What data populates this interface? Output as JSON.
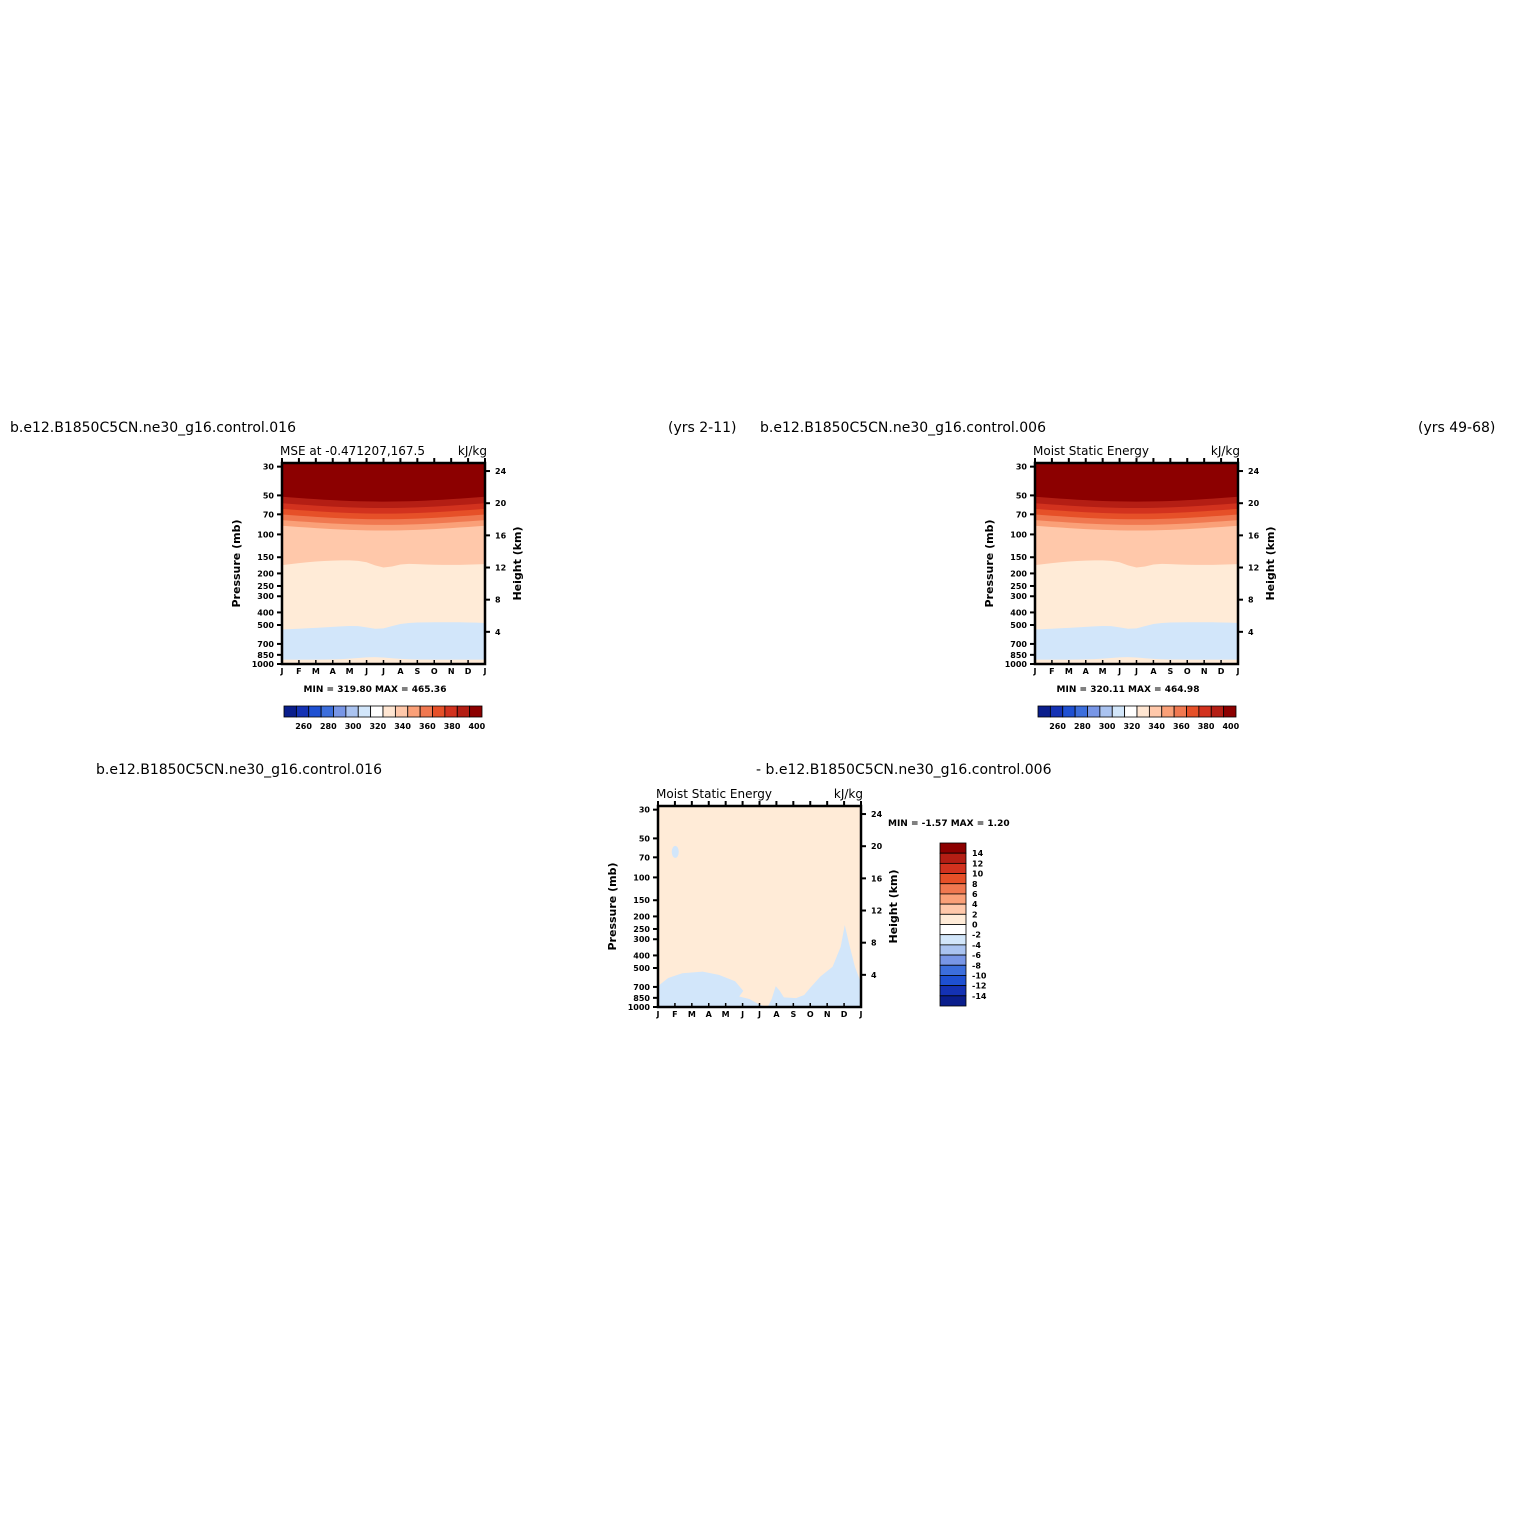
{
  "headers": {
    "left_case": "b.e12.B1850C5CN.ne30_g16.control.016",
    "left_years": "(yrs 2-11)",
    "right_case": "b.e12.B1850C5CN.ne30_g16.control.006",
    "right_years": "(yrs 49-68)",
    "diff_left": "b.e12.B1850C5CN.ne30_g16.control.016",
    "diff_right": "- b.e12.B1850C5CN.ne30_g16.control.006"
  },
  "chart_data": [
    {
      "type": "heatmap",
      "title": "MSE at -0.471207,167.5",
      "units": "kJ/kg",
      "xlabel": "",
      "ylabel": "Pressure (mb)",
      "ylabel_right": "Height (km)",
      "x_ticks": [
        "J",
        "F",
        "M",
        "A",
        "M",
        "J",
        "J",
        "A",
        "S",
        "O",
        "N",
        "D",
        "J"
      ],
      "y_ticks": [
        "30",
        "50",
        "70",
        "100",
        "150",
        "200",
        "250",
        "300",
        "400",
        "500",
        "700",
        "850",
        "1000"
      ],
      "y_ticks_right": [
        "4",
        "8",
        "12",
        "16",
        "20",
        "24"
      ],
      "stats": "MIN = 319.80 MAX = 465.36",
      "colorbar": {
        "labels": [
          "260",
          "280",
          "300",
          "320",
          "340",
          "360",
          "380",
          "400"
        ],
        "colors": [
          "#0a1e8c",
          "#1432b4",
          "#1e50d2",
          "#3c6edc",
          "#7896e6",
          "#aac3f0",
          "#d2e6fa",
          "#ffffff",
          "#ffe6d2",
          "#ffc8aa",
          "#faa078",
          "#f07850",
          "#e65028",
          "#d2321e",
          "#b41e14",
          "#8c0000"
        ]
      },
      "contours": {
        "heights": [
          22.5,
          20.8,
          20.0,
          19.3,
          18.6,
          17.9,
          17.2,
          16.0,
          12.0,
          4.0,
          0.6
        ],
        "bands": [
          "#8c0000",
          "#b41e14",
          "#d2321e",
          "#e65028",
          "#f07850",
          "#faa078",
          "#ffc8aa",
          "#ffc8aa",
          "#ffebd7",
          "#d2e6fa",
          "#ffebd7"
        ]
      }
    },
    {
      "type": "heatmap",
      "title": "Moist Static Energy",
      "units": "kJ/kg",
      "xlabel": "",
      "ylabel": "Pressure (mb)",
      "ylabel_right": "Height (km)",
      "x_ticks": [
        "J",
        "F",
        "M",
        "A",
        "M",
        "J",
        "J",
        "A",
        "S",
        "O",
        "N",
        "D",
        "J"
      ],
      "y_ticks": [
        "30",
        "50",
        "70",
        "100",
        "150",
        "200",
        "250",
        "300",
        "400",
        "500",
        "700",
        "850",
        "1000"
      ],
      "y_ticks_right": [
        "4",
        "8",
        "12",
        "16",
        "20",
        "24"
      ],
      "stats": "MIN = 320.11 MAX = 464.98",
      "colorbar": {
        "labels": [
          "260",
          "280",
          "300",
          "320",
          "340",
          "360",
          "380",
          "400"
        ],
        "colors": [
          "#0a1e8c",
          "#1432b4",
          "#1e50d2",
          "#3c6edc",
          "#7896e6",
          "#aac3f0",
          "#d2e6fa",
          "#ffffff",
          "#ffe6d2",
          "#ffc8aa",
          "#faa078",
          "#f07850",
          "#e65028",
          "#d2321e",
          "#b41e14",
          "#8c0000"
        ]
      }
    },
    {
      "type": "heatmap",
      "title": "Moist Static Energy",
      "units": "kJ/kg",
      "xlabel": "",
      "ylabel": "Pressure (mb)",
      "ylabel_right": "Height (km)",
      "x_ticks": [
        "J",
        "F",
        "M",
        "A",
        "M",
        "J",
        "J",
        "A",
        "S",
        "O",
        "N",
        "D",
        "J"
      ],
      "y_ticks": [
        "30",
        "50",
        "70",
        "100",
        "150",
        "200",
        "250",
        "300",
        "400",
        "500",
        "700",
        "850",
        "1000"
      ],
      "y_ticks_right": [
        "4",
        "8",
        "12",
        "16",
        "20",
        "24"
      ],
      "stats": "MIN =   -1.57 MAX =    1.20",
      "colorbar": {
        "labels": [
          "14",
          "12",
          "10",
          "8",
          "6",
          "4",
          "2",
          "0",
          "-2",
          "-4",
          "-6",
          "-8",
          "-10",
          "-12",
          "-14"
        ],
        "colors": [
          "#8c0000",
          "#b41e14",
          "#d2321e",
          "#e65028",
          "#f07850",
          "#faa078",
          "#ffc8aa",
          "#ffebd7",
          "#ffffff",
          "#d2e6fa",
          "#aac3f0",
          "#7896e6",
          "#3c6edc",
          "#1e50d2",
          "#1432b4",
          "#0a1e8c"
        ]
      }
    }
  ]
}
